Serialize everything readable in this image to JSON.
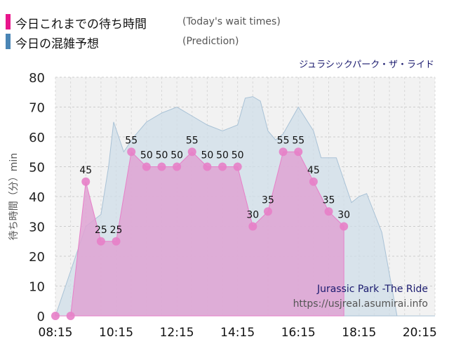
{
  "legend": {
    "today": {
      "label": "今日これまでの待ち時間",
      "sublabel": "(Today's wait times)",
      "color": "#e8168c"
    },
    "prediction": {
      "label": "今日の混雑予想",
      "sublabel": "(Prediction)",
      "color": "#4a85b5"
    }
  },
  "chart_data": {
    "type": "area",
    "title": "ジュラシックパーク・ザ・ライド",
    "ylabel": "待ち時間（分）min",
    "xlim": [
      "08:15",
      "20:45"
    ],
    "ylim": [
      0,
      80
    ],
    "yticks": [
      0,
      10,
      20,
      30,
      40,
      50,
      60,
      70,
      80
    ],
    "xticks": [
      "08:15",
      "10:15",
      "12:15",
      "14:15",
      "16:15",
      "18:15",
      "20:15"
    ],
    "grid": true,
    "series": [
      {
        "name": "今日の混雑予想",
        "type": "area",
        "color": "#c5d6e2",
        "points": [
          [
            "08:15",
            0
          ],
          [
            "08:45",
            15
          ],
          [
            "09:15",
            30
          ],
          [
            "09:45",
            34
          ],
          [
            "10:00",
            50
          ],
          [
            "10:10",
            65
          ],
          [
            "10:30",
            55
          ],
          [
            "10:50",
            60
          ],
          [
            "11:15",
            65
          ],
          [
            "11:45",
            68
          ],
          [
            "12:15",
            70
          ],
          [
            "12:45",
            67
          ],
          [
            "13:15",
            64
          ],
          [
            "13:45",
            62
          ],
          [
            "14:15",
            64
          ],
          [
            "14:30",
            73
          ],
          [
            "14:45",
            73.5
          ],
          [
            "15:00",
            72
          ],
          [
            "15:15",
            62
          ],
          [
            "15:30",
            59
          ],
          [
            "15:45",
            61
          ],
          [
            "16:15",
            70
          ],
          [
            "16:45",
            62
          ],
          [
            "17:00",
            53
          ],
          [
            "17:15",
            53
          ],
          [
            "17:30",
            53
          ],
          [
            "18:00",
            38
          ],
          [
            "18:15",
            40
          ],
          [
            "18:30",
            41
          ],
          [
            "19:00",
            28
          ],
          [
            "19:30",
            0
          ],
          [
            "19:45",
            0
          ],
          [
            "20:15",
            0
          ],
          [
            "20:45",
            0
          ]
        ]
      },
      {
        "name": "今日これまでの待ち時間",
        "type": "area",
        "color": "#e8168c",
        "points": [
          [
            "08:15",
            0
          ],
          [
            "08:45",
            0
          ],
          [
            "09:15",
            45
          ],
          [
            "09:45",
            25
          ],
          [
            "10:15",
            25
          ],
          [
            "10:45",
            55
          ],
          [
            "11:15",
            50
          ],
          [
            "11:45",
            50
          ],
          [
            "12:15",
            50
          ],
          [
            "12:45",
            55
          ],
          [
            "13:15",
            50
          ],
          [
            "13:45",
            50
          ],
          [
            "14:15",
            50
          ],
          [
            "14:45",
            30
          ],
          [
            "15:15",
            35
          ],
          [
            "15:45",
            55
          ],
          [
            "16:15",
            55
          ],
          [
            "16:45",
            45
          ],
          [
            "17:15",
            35
          ],
          [
            "17:45",
            30
          ]
        ]
      }
    ],
    "annotations": [
      "Jurassic Park -The Ride",
      "https://usjreal.asumirai.info"
    ]
  }
}
